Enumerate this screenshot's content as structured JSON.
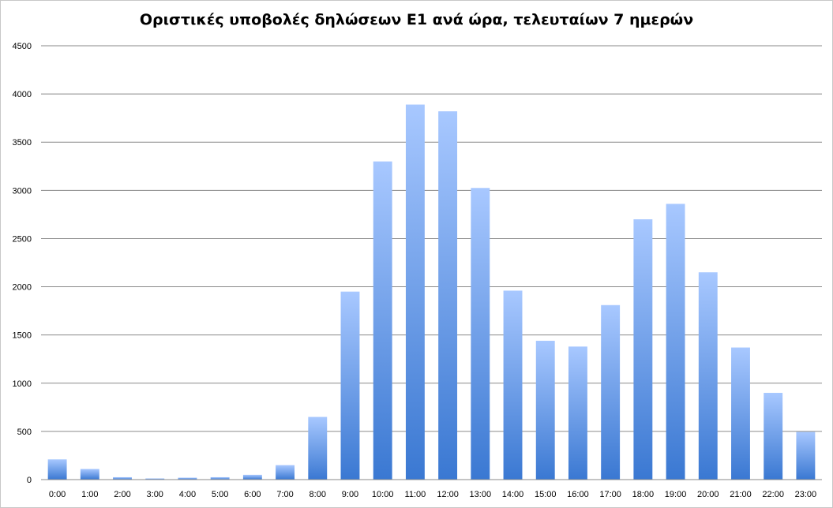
{
  "chart_data": {
    "type": "bar",
    "title": "Οριστικές υποβολές δηλώσεων Ε1 ανά ώρα, τελευταίων 7 ημερών",
    "xlabel": "",
    "ylabel": "",
    "ylim": [
      0,
      4500
    ],
    "yticks": [
      "0",
      "500",
      "1000",
      "1500",
      "2000",
      "2500",
      "3000",
      "3500",
      "4000",
      "4500"
    ],
    "ytick_values": [
      0,
      500,
      1000,
      1500,
      2000,
      2500,
      3000,
      3500,
      4000,
      4500
    ],
    "grid": true,
    "legend": "none",
    "categories": [
      "0:00",
      "1:00",
      "2:00",
      "3:00",
      "4:00",
      "5:00",
      "6:00",
      "7:00",
      "8:00",
      "9:00",
      "10:00",
      "11:00",
      "12:00",
      "13:00",
      "14:00",
      "15:00",
      "16:00",
      "17:00",
      "18:00",
      "19:00",
      "20:00",
      "21:00",
      "22:00",
      "23:00"
    ],
    "values": [
      210,
      110,
      25,
      12,
      20,
      25,
      50,
      150,
      650,
      1950,
      3300,
      3890,
      3820,
      3025,
      1960,
      1440,
      1380,
      1810,
      2700,
      2860,
      2150,
      1370,
      900,
      495
    ],
    "colors": {
      "bar_top": "#a8c8ff",
      "bar_bottom": "#3a78d2",
      "grid": "#8a8a8a",
      "axis": "#8a8a8a"
    }
  }
}
